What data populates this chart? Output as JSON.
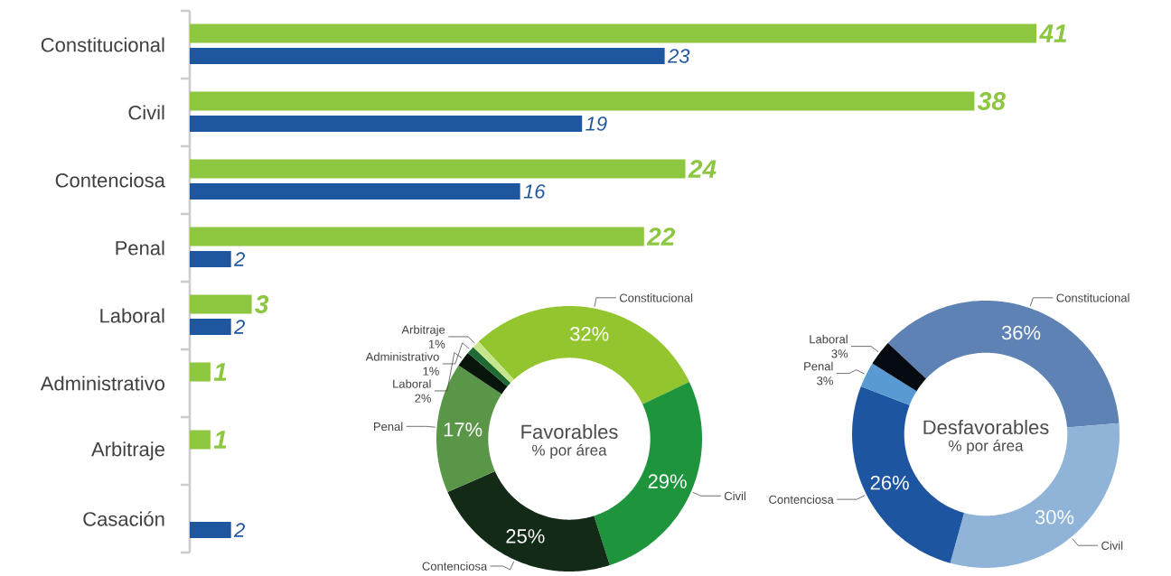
{
  "chart_data": [
    {
      "type": "bar",
      "orientation": "horizontal",
      "categories": [
        "Constitucional",
        "Civil",
        "Contenciosa",
        "Penal",
        "Laboral",
        "Administrativo",
        "Arbitraje",
        "Casación"
      ],
      "data_labels": true,
      "series": [
        {
          "color": "#8dc63f",
          "values": [
            41,
            38,
            24,
            22,
            3,
            1,
            1,
            null
          ]
        },
        {
          "color": "#1f56a0",
          "values": [
            23,
            19,
            16,
            2,
            2,
            null,
            null,
            2
          ]
        }
      ]
    },
    {
      "type": "donut",
      "title": "Favorables",
      "subtitle": "% por área",
      "categories": [
        "Constitucional",
        "Civil",
        "Contenciosa",
        "Penal",
        "Laboral",
        "Administrativo",
        "Arbitraje"
      ],
      "values": [
        32,
        29,
        25,
        17,
        2,
        1,
        1
      ],
      "colors": [
        "#93c52f",
        "#1e943c",
        "#122a16",
        "#5a9648",
        "#07150a",
        "#1f6b34",
        "#c5e68a"
      ],
      "value_labels": [
        "32%",
        "29%",
        "25%",
        "17%",
        "2%",
        "1%",
        "1%"
      ]
    },
    {
      "type": "donut",
      "title": "Desfavorables",
      "subtitle": "% por área",
      "categories": [
        "Constitucional",
        "Civil",
        "Contenciosa",
        "Penal",
        "Laboral"
      ],
      "values": [
        36,
        30,
        26,
        3,
        3
      ],
      "colors": [
        "#5f82b4",
        "#8fb4d8",
        "#1e55a0",
        "#5a9ad2",
        "#050a10"
      ],
      "value_labels": [
        "36%",
        "30%",
        "26%",
        "3%",
        "3%"
      ]
    }
  ]
}
